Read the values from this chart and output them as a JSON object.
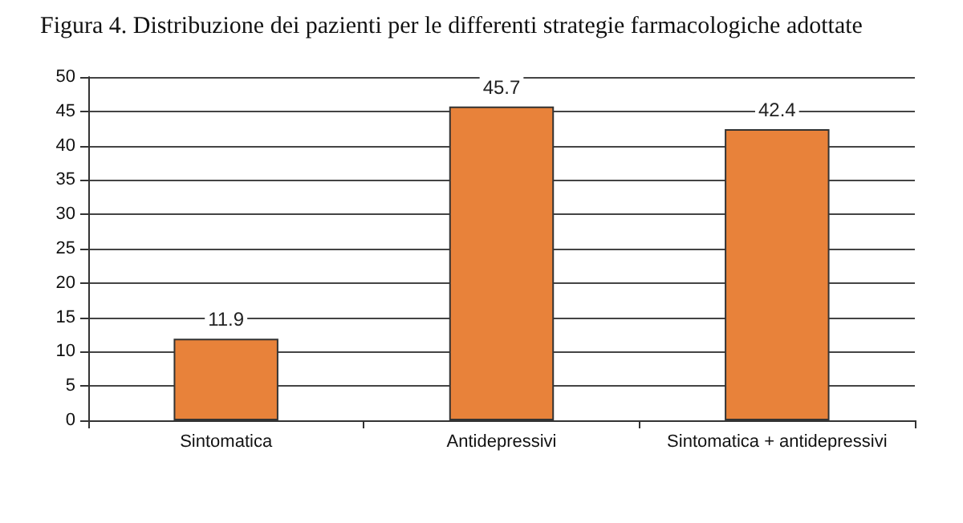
{
  "chart_data": {
    "type": "bar",
    "title": "Figura 4. Distribuzione dei pazienti per le differenti strategie farmacologiche adottate",
    "categories": [
      "Sintomatica",
      "Antidepressivi",
      "Sintomatica + antidepressivi"
    ],
    "values": [
      11.9,
      45.7,
      42.4
    ],
    "color": "#e8823a",
    "data_labels": true,
    "ylim": [
      0,
      50
    ],
    "yticks": [
      0,
      5,
      10,
      15,
      20,
      25,
      30,
      35,
      40,
      45,
      50
    ],
    "grid": "y"
  }
}
